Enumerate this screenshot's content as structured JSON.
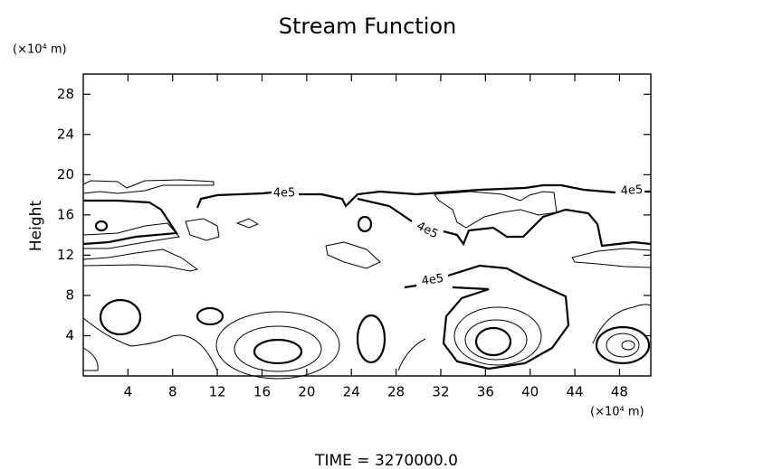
{
  "chart_data": {
    "type": "contour",
    "title": "Stream Function",
    "y_label": "Height",
    "y_unit": "(×10⁴ m)",
    "x_unit": "(×10⁴ m)",
    "footer": "TIME = 3270000.0",
    "xlim": [
      0,
      50.8
    ],
    "ylim": [
      0,
      30
    ],
    "xticks": [
      4,
      8,
      12,
      16,
      20,
      24,
      28,
      32,
      36,
      40,
      44,
      48
    ],
    "yticks": [
      4,
      8,
      12,
      16,
      20,
      24,
      28
    ],
    "contour_labels": [
      {
        "value": 400000,
        "label": "4e5"
      },
      {
        "value": 400000,
        "label": "4e5"
      },
      {
        "value": 400000,
        "label": "4e5"
      },
      {
        "value": 400000,
        "label": "4e5"
      }
    ]
  }
}
